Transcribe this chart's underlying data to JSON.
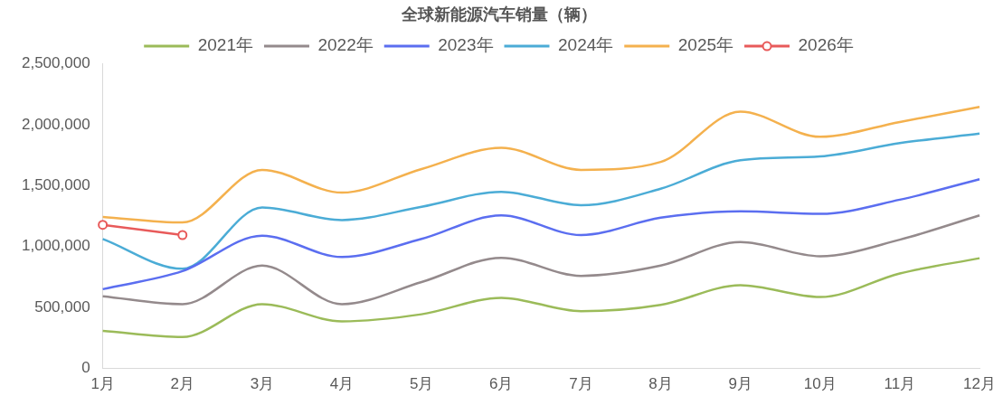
{
  "chart_data": {
    "type": "line",
    "title": "全球新能源汽车销量（辆）",
    "categories": [
      "1月",
      "2月",
      "3月",
      "4月",
      "5月",
      "6月",
      "7月",
      "8月",
      "9月",
      "10月",
      "11月",
      "12月"
    ],
    "series": [
      {
        "name": "2021年",
        "color": "#9bbb59",
        "marker": "none",
        "values": [
          309000,
          258000,
          528000,
          387000,
          445000,
          580000,
          470000,
          522000,
          683000,
          586000,
          780000,
          905000
        ]
      },
      {
        "name": "2022年",
        "color": "#948a8c",
        "marker": "none",
        "values": [
          593000,
          528000,
          844000,
          528000,
          709000,
          908000,
          760000,
          844000,
          1037000,
          921000,
          1057000,
          1256000
        ]
      },
      {
        "name": "2023年",
        "color": "#5b6ef0",
        "marker": "none",
        "values": [
          651000,
          799000,
          1089000,
          915000,
          1063000,
          1256000,
          1095000,
          1237000,
          1289000,
          1269000,
          1385000,
          1553000
        ]
      },
      {
        "name": "2024年",
        "color": "#4bacd6",
        "marker": "none",
        "values": [
          1063000,
          818000,
          1321000,
          1218000,
          1327000,
          1450000,
          1340000,
          1475000,
          1708000,
          1740000,
          1849000,
          1927000
        ]
      },
      {
        "name": "2025年",
        "color": "#f4b14e",
        "marker": "none",
        "values": [
          1244000,
          1198000,
          1630000,
          1443000,
          1637000,
          1811000,
          1630000,
          1695000,
          2107000,
          1901000,
          2023000,
          2146000
        ]
      },
      {
        "name": "2026年",
        "color": "#e85a5a",
        "marker": "circle",
        "values": [
          1179000,
          1095000,
          null,
          null,
          null,
          null,
          null,
          null,
          null,
          null,
          null,
          null
        ]
      }
    ],
    "ylim": [
      0,
      2500000
    ],
    "yticks": [
      0,
      {
        "value": 500000,
        "label": "500,000"
      },
      {
        "value": 1000000,
        "label": "1,000,000"
      },
      {
        "value": 1500000,
        "label": "1,500,000"
      },
      {
        "value": 2000000,
        "label": "2,000,000"
      },
      {
        "value": 2500000,
        "label": "2,500,000"
      }
    ],
    "grid": false,
    "legend": "top"
  }
}
